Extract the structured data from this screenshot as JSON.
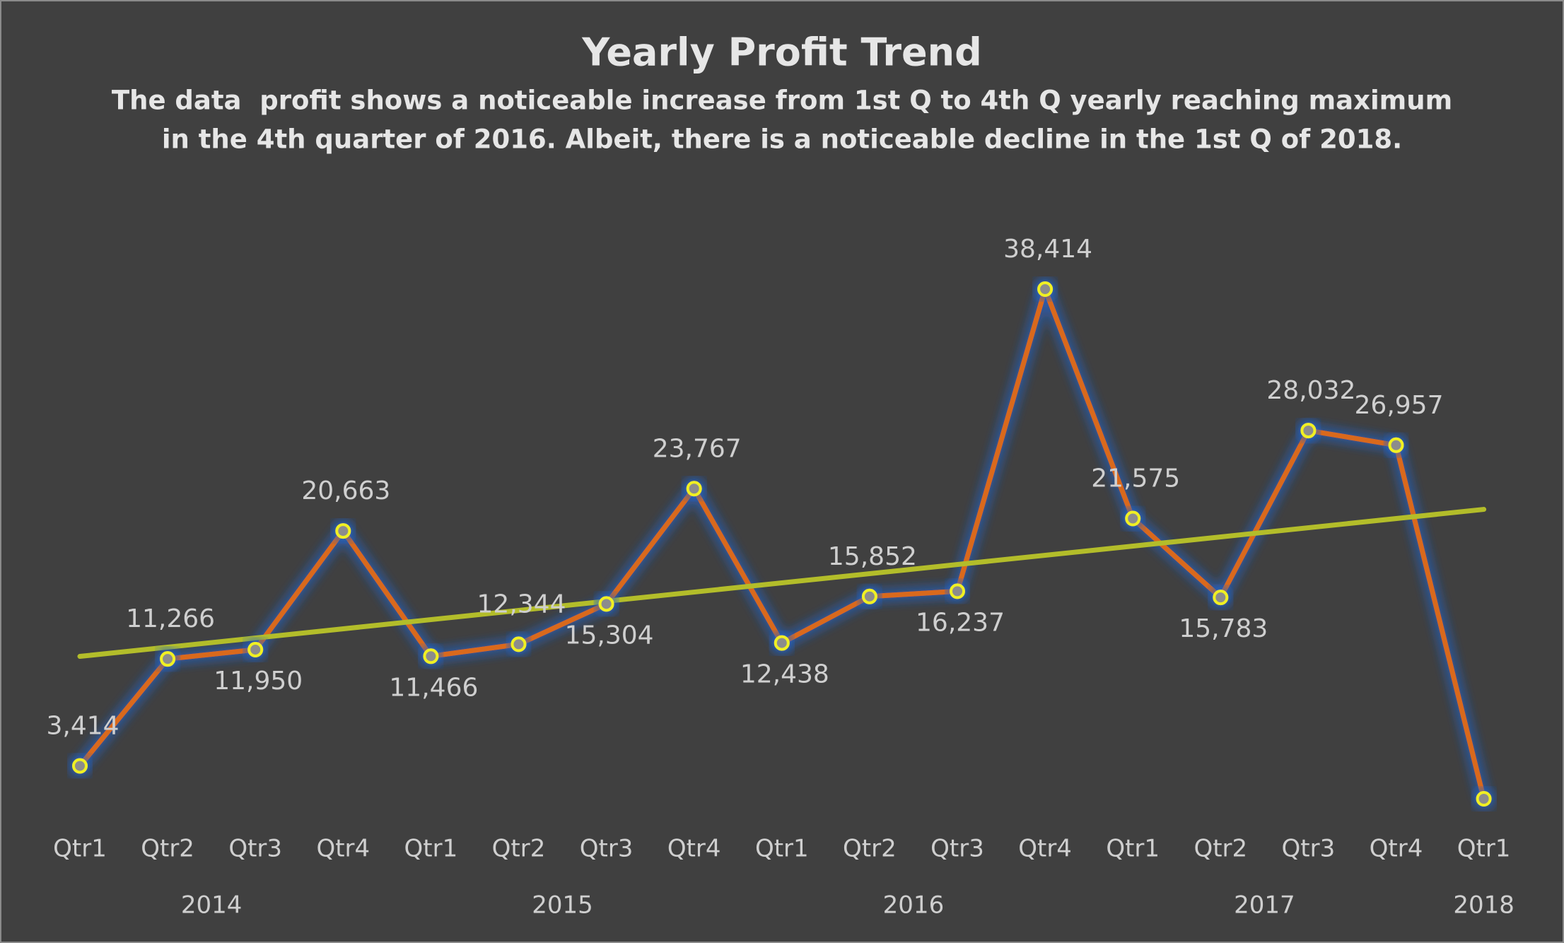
{
  "chart_data": {
    "type": "line",
    "title": "Yearly Profit Trend",
    "subtitle": [
      "The data  profit shows a noticeable increase from 1st Q to 4th Q yearly reaching maximum",
      "in the 4th quarter of 2016. Albeit, there is a noticeable decline in the 1st Q of 2018."
    ],
    "categories": [
      "Qtr1",
      "Qtr2",
      "Qtr3",
      "Qtr4",
      "Qtr1",
      "Qtr2",
      "Qtr3",
      "Qtr4",
      "Qtr1",
      "Qtr2",
      "Qtr3",
      "Qtr4",
      "Qtr1",
      "Qtr2",
      "Qtr3",
      "Qtr4",
      "Qtr1"
    ],
    "category_groups": [
      "2014",
      "2014",
      "2014",
      "2014",
      "2015",
      "2015",
      "2015",
      "2015",
      "2016",
      "2016",
      "2016",
      "2016",
      "2017",
      "2017",
      "2017",
      "2017",
      "2018"
    ],
    "values": [
      3414,
      11266,
      11950,
      20663,
      11466,
      12344,
      15304,
      23767,
      12438,
      15852,
      16237,
      38414,
      21575,
      15783,
      28032,
      26957,
      1000
    ],
    "value_labels": [
      "3,414",
      "11,266",
      "11,950",
      "20,663",
      "11,466",
      "12,344",
      "15,304",
      "23,767",
      "12,438",
      "15,852",
      "16,237",
      "38,414",
      "21,575",
      "15,783",
      "28,032",
      "26,957",
      null
    ],
    "label_positions": [
      "above",
      "above",
      "below",
      "above",
      "below",
      "above",
      "below",
      "above",
      "below",
      "above",
      "below",
      "above",
      "above",
      "below",
      "above",
      "above",
      "above"
    ],
    "color": "#d9691f",
    "marker_color": "#f0f020",
    "trendline": true,
    "trendline_color": "#b3bd2a"
  }
}
